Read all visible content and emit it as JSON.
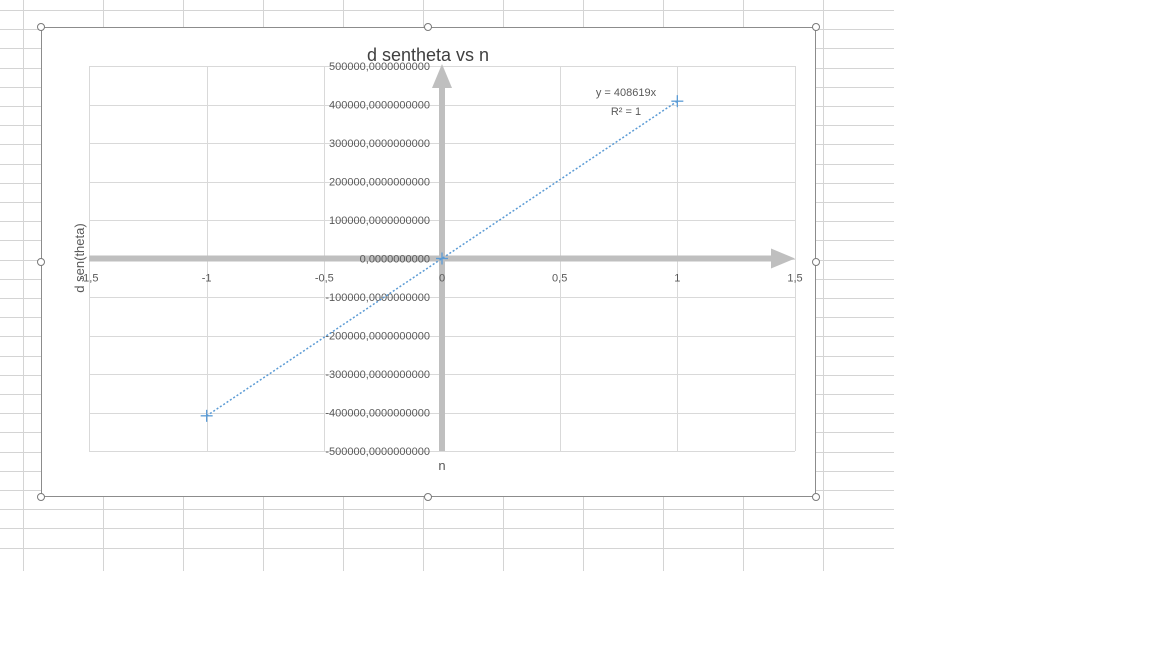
{
  "colors": {
    "sheet_gridline": "#d4d4d4",
    "chart_gridline": "#d9d9d9",
    "axis": "#bfbfbf",
    "series": "#5b9bd5",
    "trendline": "#5b9bd5",
    "text": "#595959",
    "title": "#404040"
  },
  "chart_data": {
    "type": "scatter",
    "title": "d sentheta vs n",
    "xlabel": "n",
    "ylabel": "d sen(theta)",
    "xlim": [
      -1.5,
      1.5
    ],
    "ylim": [
      -500000,
      500000
    ],
    "x_ticks": [
      -1.5,
      -1,
      -0.5,
      0,
      0.5,
      1,
      1.5
    ],
    "x_tick_labels": [
      "-1,5",
      "-1",
      "-0,5",
      "0",
      "0,5",
      "1",
      "1,5"
    ],
    "y_ticks": [
      500000,
      400000,
      300000,
      200000,
      100000,
      0,
      -100000,
      -200000,
      -300000,
      -400000,
      -500000
    ],
    "y_tick_labels": [
      "500000,0000000000",
      "400000,0000000000",
      "300000,0000000000",
      "200000,0000000000",
      "100000,0000000000",
      "0,0000000000",
      "-100000,0000000000",
      "-200000,0000000000",
      "-300000,0000000000",
      "-400000,0000000000",
      "-500000,0000000000"
    ],
    "grid": true,
    "marker": "plus",
    "series": [
      {
        "x": [
          -1,
          0,
          1
        ],
        "y": [
          -408619,
          0,
          408619
        ]
      }
    ],
    "trendline": {
      "type": "linear",
      "style": "dotted",
      "slope": 408619,
      "intercept": 0,
      "equation": "y = 408619x",
      "r_squared": "R² = 1"
    }
  }
}
